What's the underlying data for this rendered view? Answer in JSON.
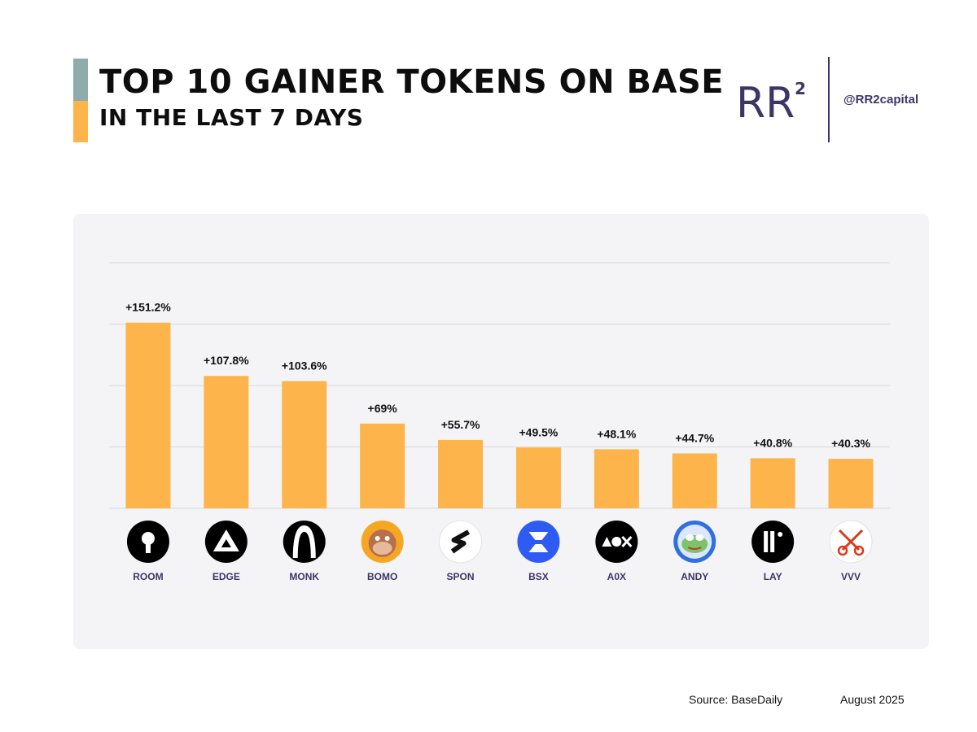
{
  "header": {
    "title": "TOP 10 GAINER TOKENS ON BASE",
    "subtitle": "IN THE LAST 7 DAYS",
    "handle": "@RR2capital",
    "logo_text": "RR",
    "logo_superscript": "2"
  },
  "colors": {
    "bar": "#fdb44a",
    "accent_top": "#8fabaa",
    "accent_bottom": "#fdb44a",
    "brand": "#3d3566",
    "panel": "#f4f4f7",
    "gridline": "#d9d9de"
  },
  "chart_data": {
    "type": "bar",
    "title": "TOP 10 GAINER TOKENS ON BASE",
    "subtitle": "IN THE LAST 7 DAYS",
    "categories": [
      "ROOM",
      "EDGE",
      "MONK",
      "BOMO",
      "SPON",
      "BSX",
      "A0X",
      "ANDY",
      "LAY",
      "VVV"
    ],
    "values": [
      151.2,
      107.8,
      103.6,
      69,
      55.7,
      49.5,
      48.1,
      44.7,
      40.8,
      40.3
    ],
    "data_labels": [
      "+151.2%",
      "+107.8%",
      "+103.6%",
      "+69%",
      "+55.7%",
      "+49.5%",
      "+48.1%",
      "+44.7%",
      "+40.8%",
      "+40.3%"
    ],
    "icons": [
      "keyhole-icon",
      "triangle-icon",
      "hooded-monk-icon",
      "ape-face-icon",
      "spon-s-icon",
      "bsx-hourglass-icon",
      "a0x-shapes-icon",
      "frog-face-icon",
      "lay-bars-icon",
      "crossed-keys-icon"
    ],
    "icon_colors": [
      "#000000",
      "#000000",
      "#000000",
      "#f5a623",
      "#ffffff",
      "#2f5bf5",
      "#000000",
      "#2f6fe0",
      "#000000",
      "#ffffff"
    ],
    "ylim": [
      0,
      200
    ],
    "gridlines": [
      0,
      50,
      100,
      150,
      200
    ],
    "grid": true,
    "legend": "none"
  },
  "footer": {
    "source": "Source: BaseDaily",
    "date": "August 2025"
  }
}
